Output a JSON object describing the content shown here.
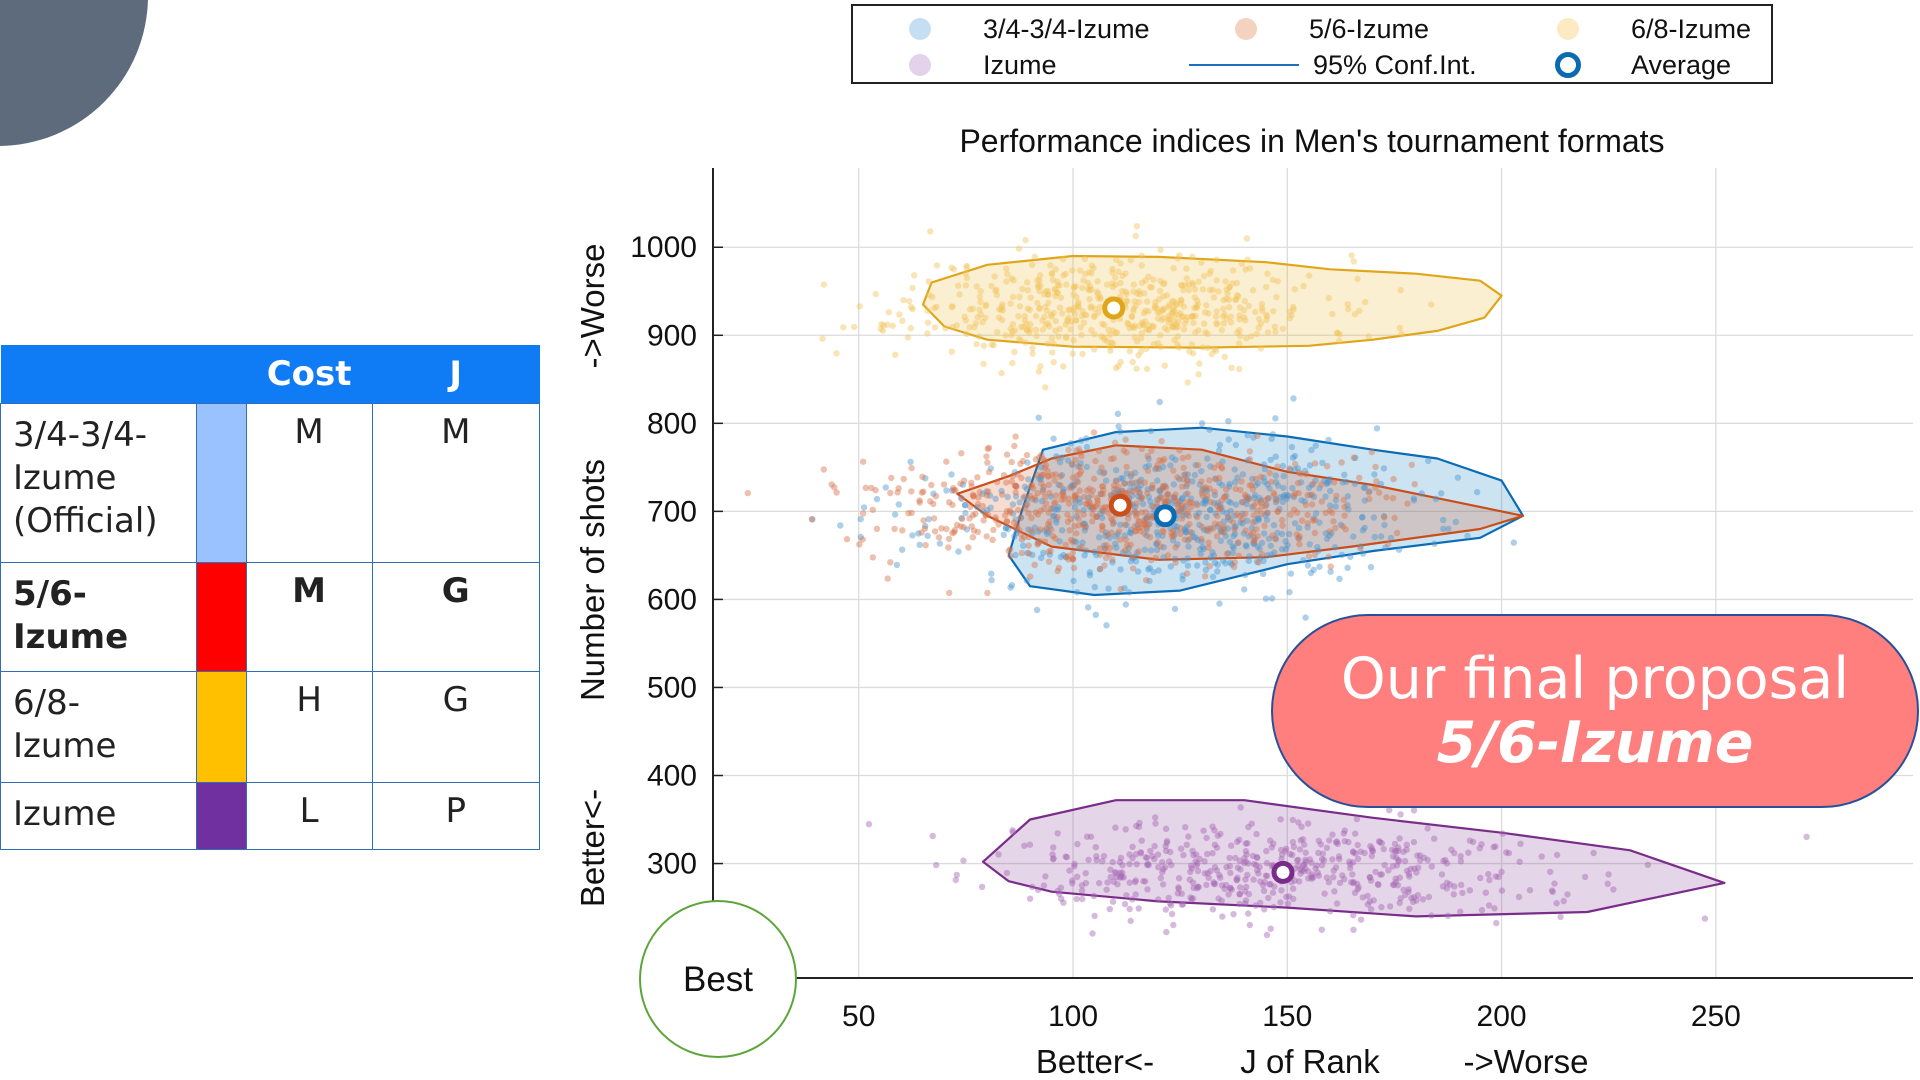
{
  "table": {
    "headers": [
      "",
      "",
      "Cost",
      "J"
    ],
    "rows": [
      {
        "name": "3/4-3/4-Izume (Official)",
        "name_lines": [
          "3/4-3/4-",
          "Izume",
          "(Official)"
        ],
        "color": "#99c2ff",
        "cost": "M",
        "j": "M",
        "bold": false
      },
      {
        "name": "5/6-Izume",
        "name_lines": [
          "5/6-",
          "Izume"
        ],
        "color": "#ff0000",
        "cost": "M",
        "j": "G",
        "bold": true
      },
      {
        "name": "6/8-Izume",
        "name_lines": [
          "6/8-",
          "Izume"
        ],
        "color": "#ffc000",
        "cost": "H",
        "j": "G",
        "bold": false
      },
      {
        "name": "Izume",
        "name_lines": [
          "Izume"
        ],
        "color": "#7030a0",
        "cost": "L",
        "j": "P",
        "bold": false
      }
    ]
  },
  "legend": {
    "items": [
      {
        "label": "3/4-3/4-Izume",
        "kind": "dot",
        "color": "#c6def2"
      },
      {
        "label": "5/6-Izume",
        "kind": "dot",
        "color": "#f5d2c0"
      },
      {
        "label": "6/8-Izume",
        "kind": "dot",
        "color": "#fcebc2"
      },
      {
        "label": "Izume",
        "kind": "dot",
        "color": "#e3d2ea"
      },
      {
        "label": "95% Conf.Int.",
        "kind": "line",
        "color": "#1f6fc0"
      },
      {
        "label": "Average",
        "kind": "ring",
        "color": "#0b6bb1"
      }
    ]
  },
  "callout": {
    "line1": "Our final proposal",
    "line2": "5/6-Izume"
  },
  "best_label": "Best",
  "chart_data": {
    "type": "scatter",
    "title": "Performance indices in Men's tournament formats",
    "xlabel_left": "Better<-",
    "xlabel_center": "J of Rank",
    "xlabel_right": "->Worse",
    "ylabel_bottom": "Better<-",
    "ylabel_center": "Number of shots",
    "ylabel_top": "->Worse",
    "xlim": [
      16,
      296
    ],
    "ylim": [
      170,
      1090
    ],
    "xticks": [
      50,
      100,
      150,
      200,
      250
    ],
    "yticks": [
      300,
      400,
      500,
      600,
      700,
      800,
      900,
      1000
    ],
    "grid": true,
    "series": [
      {
        "name": "6/8-Izume",
        "fill": "#edb120",
        "stroke": "#e0a61a",
        "point_color": "#f2c45a",
        "mean": [
          109.5,
          931
        ],
        "spread": [
          24,
          30
        ],
        "n": 600,
        "seed": 11,
        "ci": [
          [
            67,
            960
          ],
          [
            80,
            980
          ],
          [
            100,
            990
          ],
          [
            120,
            989
          ],
          [
            145,
            983
          ],
          [
            160,
            975
          ],
          [
            180,
            970
          ],
          [
            195,
            962
          ],
          [
            200,
            945
          ],
          [
            196,
            920
          ],
          [
            185,
            905
          ],
          [
            170,
            895
          ],
          [
            155,
            888
          ],
          [
            130,
            886
          ],
          [
            100,
            887
          ],
          [
            80,
            895
          ],
          [
            70,
            910
          ],
          [
            65,
            935
          ]
        ]
      },
      {
        "name": "3/4-3/4-Izume",
        "fill": "#0072bd",
        "stroke": "#0a6cb5",
        "point_color": "#4a95cf",
        "mean": [
          121.5,
          695
        ],
        "spread": [
          28,
          42
        ],
        "n": 650,
        "seed": 23,
        "ci": [
          [
            93,
            770
          ],
          [
            110,
            790
          ],
          [
            130,
            795
          ],
          [
            150,
            785
          ],
          [
            170,
            770
          ],
          [
            185,
            760
          ],
          [
            200,
            735
          ],
          [
            205,
            695
          ],
          [
            195,
            670
          ],
          [
            170,
            655
          ],
          [
            150,
            640
          ],
          [
            125,
            610
          ],
          [
            105,
            605
          ],
          [
            90,
            615
          ],
          [
            85,
            650
          ],
          [
            88,
            700
          ]
        ]
      },
      {
        "name": "5/6-Izume",
        "fill": "#d95319",
        "stroke": "#c94e1a",
        "point_color": "#d8704a",
        "mean": [
          111,
          707
        ],
        "spread": [
          28,
          34
        ],
        "n": 650,
        "seed": 37,
        "ci": [
          [
            73,
            720
          ],
          [
            85,
            740
          ],
          [
            95,
            760
          ],
          [
            110,
            775
          ],
          [
            130,
            770
          ],
          [
            150,
            745
          ],
          [
            170,
            730
          ],
          [
            190,
            710
          ],
          [
            205,
            695
          ],
          [
            195,
            680
          ],
          [
            165,
            660
          ],
          [
            145,
            648
          ],
          [
            120,
            645
          ],
          [
            95,
            660
          ],
          [
            80,
            695
          ]
        ]
      },
      {
        "name": "Izume",
        "fill": "#7e2f8e",
        "stroke": "#7a2c8a",
        "point_color": "#a366b3",
        "mean": [
          149,
          290
        ],
        "spread": [
          32,
          28
        ],
        "n": 550,
        "seed": 51,
        "ci": [
          [
            79,
            302
          ],
          [
            90,
            350
          ],
          [
            110,
            372
          ],
          [
            140,
            372
          ],
          [
            170,
            352
          ],
          [
            200,
            335
          ],
          [
            230,
            315
          ],
          [
            252,
            278
          ],
          [
            220,
            245
          ],
          [
            180,
            240
          ],
          [
            150,
            250
          ],
          [
            120,
            257
          ],
          [
            95,
            268
          ],
          [
            85,
            280
          ]
        ]
      }
    ]
  }
}
